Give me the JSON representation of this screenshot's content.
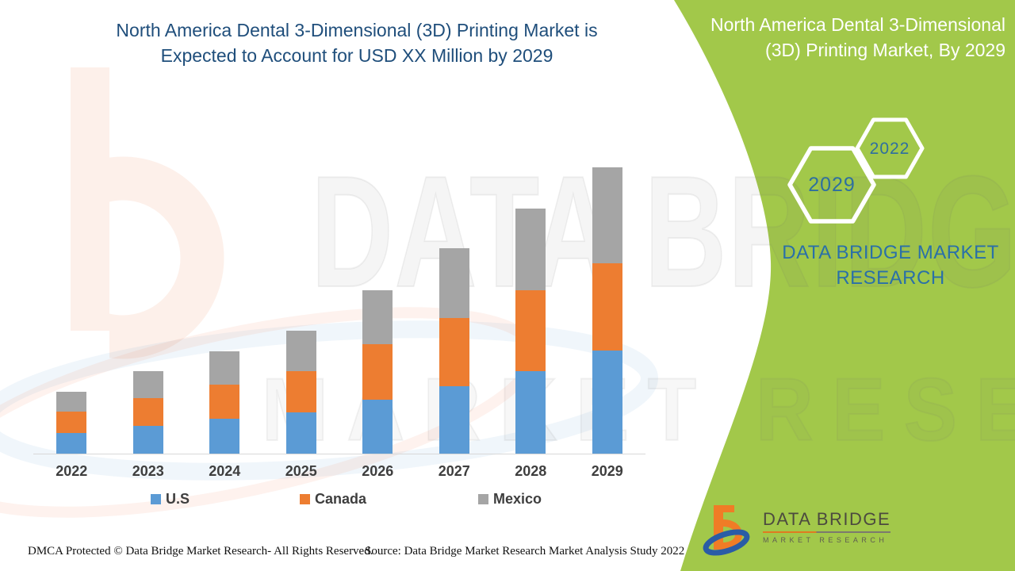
{
  "title": {
    "line1": "North America Dental 3-Dimensional (3D) Printing Market is",
    "line2": "Expected to Account for USD XX Million by 2029"
  },
  "side_panel": {
    "title_line1": "North America Dental 3-Dimensional",
    "title_line2": "(3D) Printing Market, By 2029",
    "badge_large": "2029",
    "badge_small": "2022",
    "brand_line1": "DATA BRIDGE MARKET",
    "brand_line2": "RESEARCH"
  },
  "watermark": {
    "row1": "DATA BRIDGE",
    "row2": "MARKET RESEARCH"
  },
  "chart_data": {
    "type": "bar",
    "stacked": true,
    "categories": [
      "2022",
      "2023",
      "2024",
      "2025",
      "2026",
      "2027",
      "2028",
      "2029"
    ],
    "series": [
      {
        "name": "U.S",
        "color": "#5B9BD5",
        "values": [
          26,
          35,
          44,
          52,
          68,
          85,
          104,
          130
        ]
      },
      {
        "name": "Canada",
        "color": "#ED7D31",
        "values": [
          27,
          35,
          43,
          52,
          70,
          86,
          102,
          110
        ]
      },
      {
        "name": "Mexico",
        "color": "#A5A5A5",
        "values": [
          25,
          34,
          42,
          51,
          68,
          88,
          103,
          121
        ]
      }
    ],
    "title": "North America Dental 3-Dimensional (3D) Printing Market is Expected to Account for USD XX Million by 2029",
    "xlabel": "",
    "ylabel": "",
    "y_axis_shown": false,
    "value_units": "relative units (actual USD values masked as XX Million)",
    "grid": false,
    "legend_position": "bottom"
  },
  "footer": {
    "dmca": "DMCA Protected © Data Bridge Market Research- All Rights Reserved.",
    "source": "Source: Data Bridge Market Research Market Analysis Study 2022",
    "logo_name": "DATA BRIDGE",
    "logo_tagline": "MARKET RESEARCH"
  },
  "colors": {
    "panel_green": "#a2c84a",
    "title_blue": "#1f4e7b",
    "brand_blue": "#2a70a8",
    "hex_text_blue": "#2e6f9f",
    "axis_label_gray": "#3e3e3e",
    "baseline_gray": "#d8d8d8",
    "logo_orange": "#f07c26",
    "logo_blue": "#2a5ca6"
  }
}
